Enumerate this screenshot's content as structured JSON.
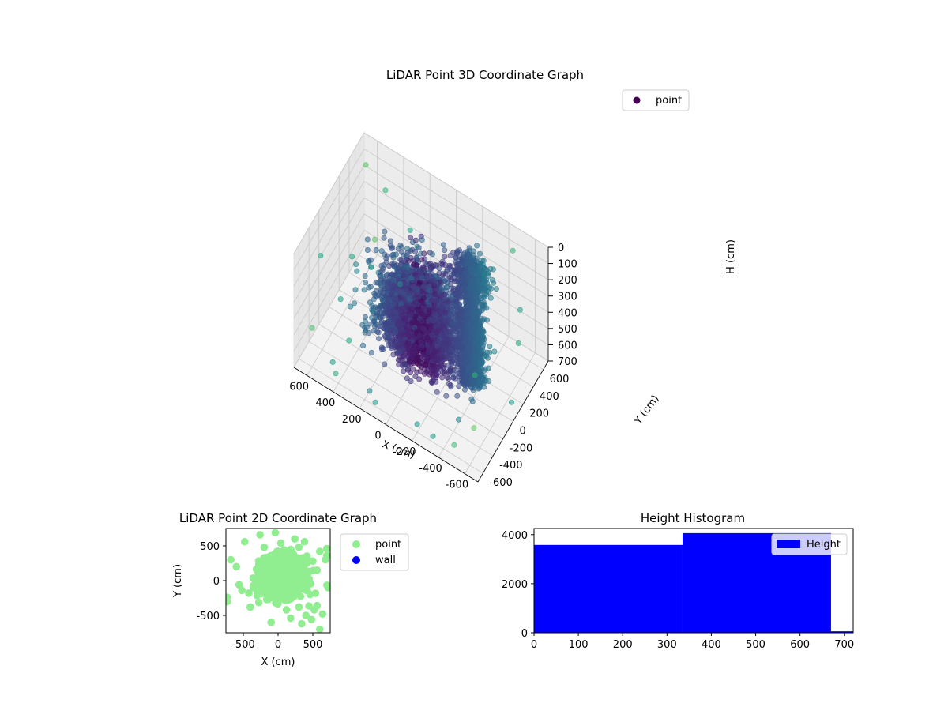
{
  "chart_data": [
    {
      "type": "scatter3d",
      "title": "LiDAR Point 3D Coordinate Graph",
      "xlabel": "X (cm)",
      "ylabel": "Y (cm)",
      "zlabel": "H (cm)",
      "xlim": [
        -700,
        700
      ],
      "ylim": [
        -700,
        700
      ],
      "zlim": [
        0,
        700
      ],
      "z_inverted": true,
      "xticks": [
        -600,
        -400,
        -200,
        0,
        200,
        400,
        600
      ],
      "yticks": [
        -600,
        -400,
        -200,
        0,
        200,
        400,
        600
      ],
      "zticks": [
        0,
        100,
        200,
        300,
        400,
        500,
        600,
        700
      ],
      "grid": true,
      "legend": {
        "placement": "upper-right",
        "entries": [
          {
            "label": "point",
            "color": "#440154"
          }
        ]
      },
      "colormap": "viridis",
      "clusters": [
        {
          "x": 50,
          "y": 100,
          "h": 480,
          "count": 3500,
          "spread": [
            140,
            120,
            130
          ]
        },
        {
          "x": -330,
          "y": 150,
          "h": 520,
          "count": 1400,
          "spread": [
            40,
            40,
            170
          ]
        },
        {
          "x": -300,
          "y": 200,
          "h": 120,
          "count": 500,
          "spread": [
            60,
            60,
            60
          ]
        }
      ],
      "outliers": [
        [
          -650,
          -650,
          420
        ],
        [
          -600,
          -500,
          200
        ],
        [
          -500,
          -650,
          600
        ],
        [
          650,
          600,
          120
        ],
        [
          600,
          650,
          580
        ],
        [
          -550,
          500,
          560
        ],
        [
          -620,
          350,
          240
        ],
        [
          420,
          -600,
          650
        ],
        [
          500,
          -450,
          700
        ],
        [
          300,
          -650,
          360
        ],
        [
          650,
          -300,
          200
        ],
        [
          650,
          100,
          680
        ],
        [
          550,
          450,
          620
        ],
        [
          -400,
          -300,
          680
        ],
        [
          -200,
          -600,
          650
        ],
        [
          200,
          -500,
          700
        ],
        [
          640,
          300,
          520
        ],
        [
          -450,
          650,
          120
        ],
        [
          -300,
          -550,
          700
        ],
        [
          100,
          -650,
          640
        ],
        [
          450,
          200,
          700
        ],
        [
          350,
          500,
          650
        ],
        [
          600,
          -600,
          460
        ],
        [
          -650,
          100,
          660
        ],
        [
          500,
          600,
          200
        ]
      ]
    },
    {
      "type": "scatter",
      "title": "LiDAR Point 2D Coordinate Graph",
      "xlabel": "X (cm)",
      "ylabel": "Y (cm)",
      "xlim": [
        -750,
        750
      ],
      "ylim": [
        -750,
        750
      ],
      "xticks": [
        -500,
        0,
        500
      ],
      "yticks": [
        -500,
        0,
        500
      ],
      "legend": {
        "placement": "outside-right",
        "entries": [
          {
            "label": "point",
            "color": "#90ee90"
          },
          {
            "label": "wall",
            "color": "#0000ff"
          }
        ]
      },
      "series": [
        {
          "name": "point",
          "color": "#90ee90",
          "clusters": [
            {
              "x": 60,
              "y": 60,
              "count": 900,
              "spread": [
                150,
                140
              ]
            }
          ],
          "points": [
            [
              -730,
              -300
            ],
            [
              -730,
              -240
            ],
            [
              -480,
              560
            ],
            [
              -420,
              -180
            ],
            [
              -400,
              -380
            ],
            [
              -300,
              -180
            ],
            [
              -260,
              660
            ],
            [
              -200,
              480
            ],
            [
              -150,
              -260
            ],
            [
              -100,
              -600
            ],
            [
              -40,
              690
            ],
            [
              40,
              540
            ],
            [
              120,
              -420
            ],
            [
              180,
              -540
            ],
            [
              240,
              600
            ],
            [
              300,
              -380
            ],
            [
              340,
              -620
            ],
            [
              360,
              200
            ],
            [
              400,
              -500
            ],
            [
              420,
              320
            ],
            [
              460,
              -200
            ],
            [
              480,
              -560
            ],
            [
              500,
              280
            ],
            [
              520,
              -420
            ],
            [
              560,
              -360
            ],
            [
              600,
              420
            ],
            [
              640,
              -480
            ],
            [
              680,
              300
            ],
            [
              700,
              460
            ],
            [
              720,
              -100
            ],
            [
              -560,
              -60
            ],
            [
              -680,
              300
            ],
            [
              -600,
              200
            ],
            [
              300,
              480
            ],
            [
              380,
              560
            ],
            [
              600,
              -700
            ],
            [
              440,
              120
            ],
            [
              700,
              360
            ],
            [
              -520,
              -140
            ],
            [
              560,
              150
            ]
          ]
        },
        {
          "name": "wall",
          "color": "#0000ff",
          "points": []
        }
      ]
    },
    {
      "type": "bar",
      "title": "Height Histogram",
      "xlim": [
        0,
        720
      ],
      "ylim": [
        0,
        4250
      ],
      "xticks": [
        0,
        100,
        200,
        300,
        400,
        500,
        600,
        700
      ],
      "yticks": [
        0,
        2000,
        4000
      ],
      "legend": {
        "placement": "upper-right",
        "entries": [
          {
            "label": "Height",
            "color": "#0000ff"
          }
        ]
      },
      "series": [
        {
          "name": "Height",
          "color": "#0000ff",
          "bins": [
            {
              "x0": 0,
              "x1": 335,
              "value": 3580
            },
            {
              "x0": 335,
              "x1": 670,
              "value": 4060
            },
            {
              "x0": 670,
              "x1": 720,
              "value": 60
            }
          ]
        }
      ]
    }
  ]
}
